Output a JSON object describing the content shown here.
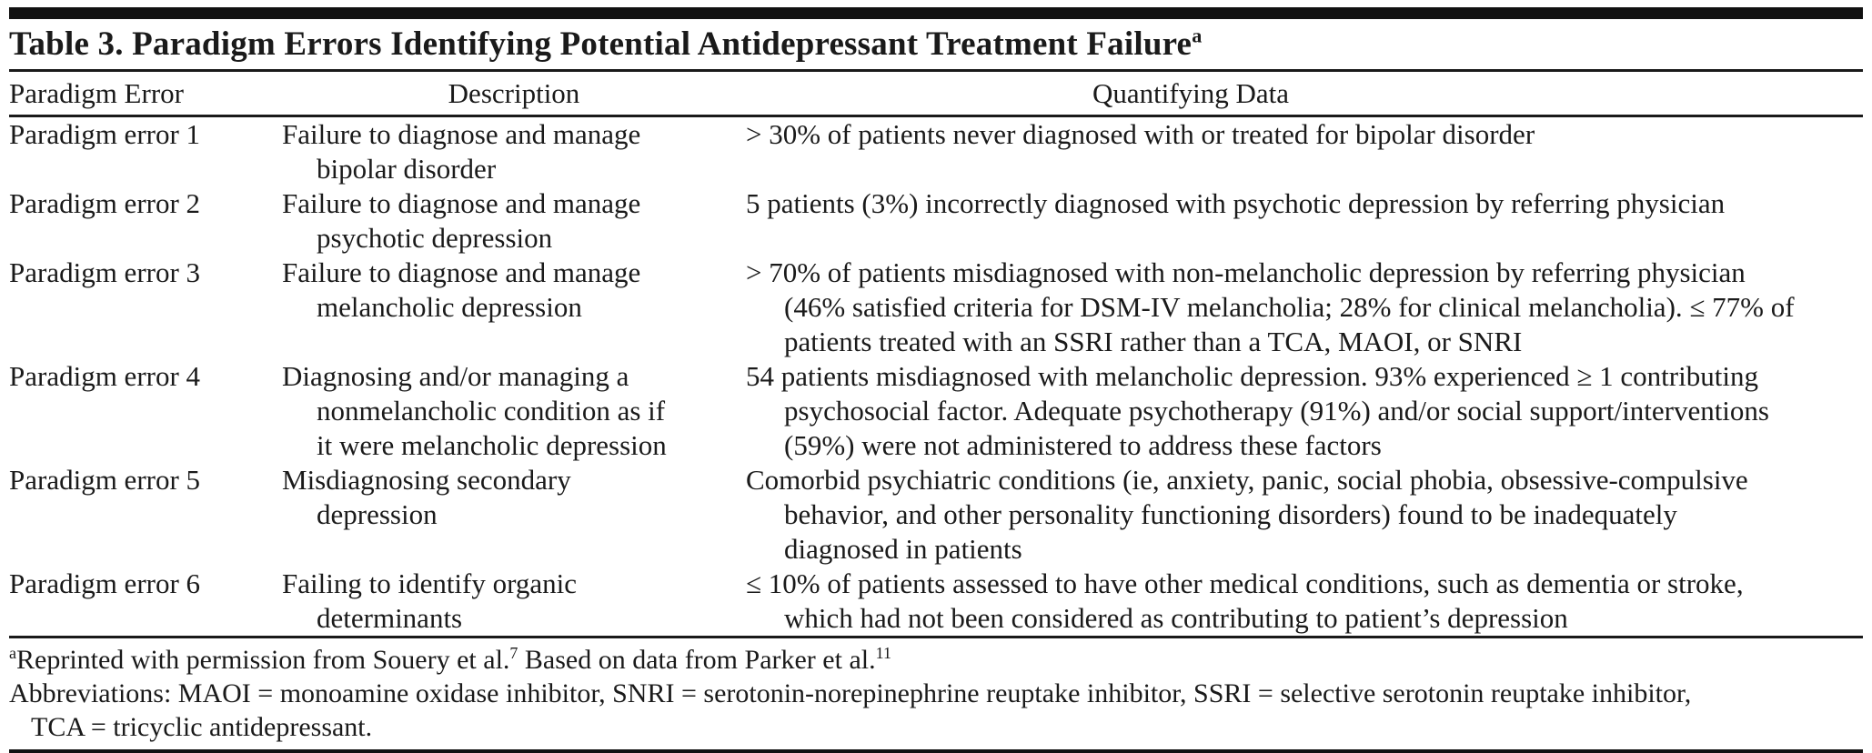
{
  "table": {
    "title": "Table 3. Paradigm Errors Identifying Potential Antidepressant Treatment Failure",
    "title_superscript": "a",
    "columns": [
      "Paradigm Error",
      "Description",
      "Quantifying Data"
    ],
    "rows": [
      {
        "paradigm_error": "Paradigm error 1",
        "description_lines": [
          "Failure to diagnose and manage",
          "bipolar disorder"
        ],
        "quantifying_data_lines": [
          "> 30% of patients never diagnosed with or treated for bipolar disorder"
        ]
      },
      {
        "paradigm_error": "Paradigm error 2",
        "description_lines": [
          "Failure to diagnose and manage",
          "psychotic depression"
        ],
        "quantifying_data_lines": [
          "5 patients (3%) incorrectly diagnosed with psychotic depression by referring physician"
        ]
      },
      {
        "paradigm_error": "Paradigm error 3",
        "description_lines": [
          "Failure to diagnose and manage",
          "melancholic depression"
        ],
        "quantifying_data_lines": [
          "> 70% of patients misdiagnosed with non-melancholic depression by referring physician",
          "(46% satisfied criteria for DSM-IV melancholia; 28% for clinical melancholia). ≤ 77% of",
          "patients treated with an SSRI rather than a TCA, MAOI, or SNRI"
        ]
      },
      {
        "paradigm_error": "Paradigm error 4",
        "description_lines": [
          "Diagnosing and/or managing a",
          "nonmelancholic condition as if",
          "it were melancholic depression"
        ],
        "quantifying_data_lines": [
          "54 patients misdiagnosed with melancholic depression. 93% experienced ≥ 1 contributing",
          "psychosocial factor. Adequate psychotherapy (91%) and/or social support/interventions",
          "(59%) were not administered to address these factors"
        ]
      },
      {
        "paradigm_error": "Paradigm error 5",
        "description_lines": [
          "Misdiagnosing secondary",
          "depression"
        ],
        "quantifying_data_lines": [
          "Comorbid psychiatric conditions (ie, anxiety, panic, social phobia, obsessive-compulsive",
          "behavior, and other personality functioning disorders) found to be inadequately",
          "diagnosed in patients"
        ]
      },
      {
        "paradigm_error": "Paradigm error 6",
        "description_lines": [
          "Failing to identify organic",
          "determinants"
        ],
        "quantifying_data_lines": [
          "≤ 10% of patients assessed to have other medical conditions, such as dementia or stroke,",
          "which had not been considered as contributing to patient’s depression"
        ]
      }
    ],
    "footnotes": {
      "reprint": {
        "sup_a": "a",
        "text_1": "Reprinted with permission from Souery et al.",
        "sup_ref_1": "7",
        "text_2": " Based on data from Parker et al.",
        "sup_ref_2": "11"
      },
      "abbreviations_lines": [
        "Abbreviations: MAOI = monoamine oxidase inhibitor, SNRI = serotonin-norepinephrine reuptake inhibitor, SSRI = selective serotonin reuptake inhibitor,",
        "TCA = tricyclic antidepressant."
      ]
    },
    "text_color": "#1a1a1a",
    "background_color": "#ffffff"
  }
}
